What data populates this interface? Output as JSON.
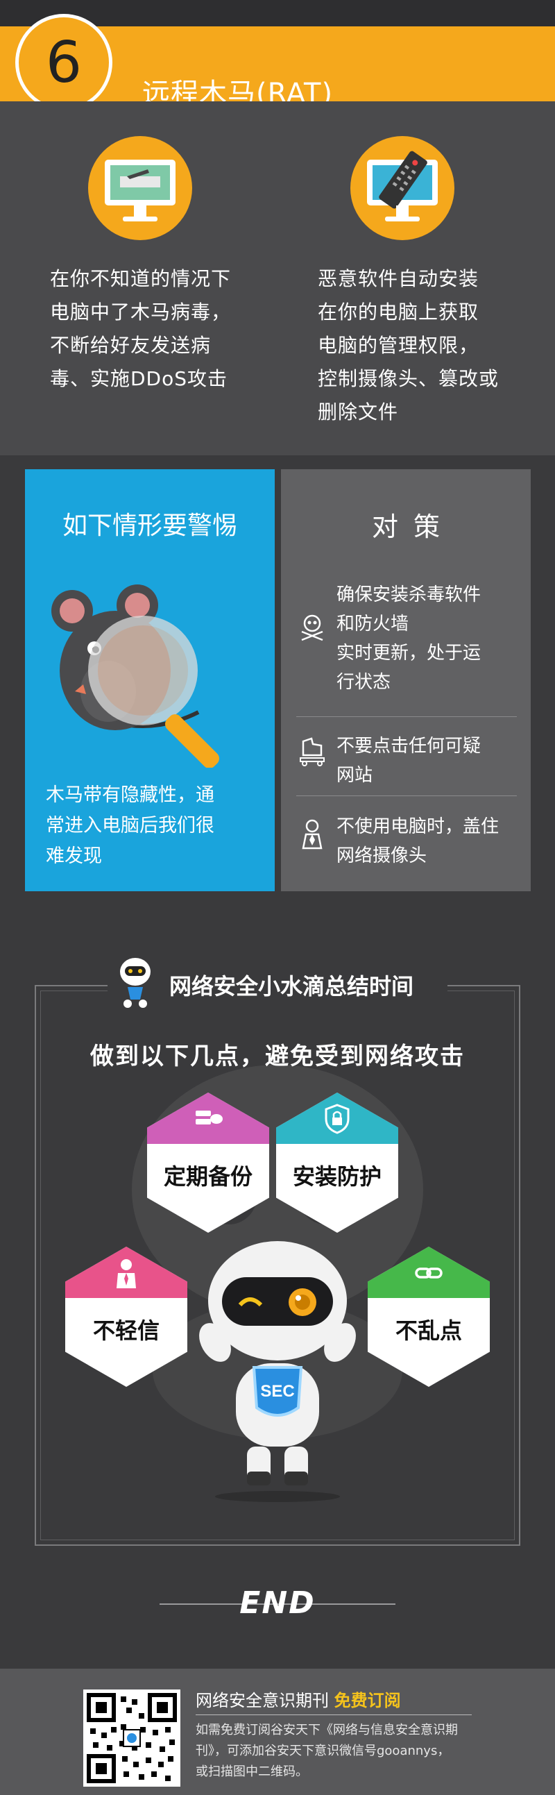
{
  "header": {
    "number": "6",
    "title": "远程木马(RAT)"
  },
  "intro": {
    "left_lines": [
      "在你不知道的情况下",
      "电脑中了木马病毒，",
      "不断给好友发送病",
      "毒、实施DDoS攻击"
    ],
    "right_lines": [
      "恶意软件自动安装",
      "在你的电脑上获取",
      "电脑的管理权限，",
      "控制摄像头、篡改或",
      "删除文件"
    ]
  },
  "warning": {
    "title": "如下情形要警惕",
    "lines": [
      "木马带有隐藏性，通",
      "常进入电脑后我们很",
      "难发现"
    ]
  },
  "countermeasures": {
    "title": "对策",
    "items": [
      {
        "icon": "skull-crossbones-icon",
        "lines": [
          "确保安装杀毒软件",
          "和防火墙",
          "实时更新，处于运",
          "行状态"
        ]
      },
      {
        "icon": "trojan-horse-icon",
        "lines": [
          "不要点击任何可疑",
          "网站"
        ]
      },
      {
        "icon": "spy-icon",
        "lines": [
          "不使用电脑时，盖住",
          "网络摄像头"
        ]
      }
    ]
  },
  "summary": {
    "title": "网络安全小水滴总结时间",
    "subtitle": "做到以下几点，避免受到网络攻击",
    "hexes": [
      {
        "label": "定期备份",
        "icon": "server-cloud-icon",
        "color": "#cf5fb8"
      },
      {
        "label": "安装防护",
        "icon": "shield-lock-icon",
        "color": "#2fb6c6"
      },
      {
        "label": "不轻信",
        "icon": "user-tie-icon",
        "color": "#e8538a"
      },
      {
        "label": "不乱点",
        "icon": "chain-link-icon",
        "color": "#46b84a"
      }
    ],
    "robot_badge": "SEC"
  },
  "end": "END",
  "footer": {
    "title": "网络安全意识期刊",
    "highlight": "免费订阅",
    "desc_lines": [
      "如需免费订阅谷安天下《网络与信息安全意识期",
      "刊》，可添加谷安天下意识微信号gooannys，",
      "或扫描图中二维码。"
    ]
  },
  "colors": {
    "accent_orange": "#f5a81c",
    "warn_blue": "#1aa4dc",
    "counter_gray": "#616163",
    "bg_dark": "#3a3a3c"
  }
}
